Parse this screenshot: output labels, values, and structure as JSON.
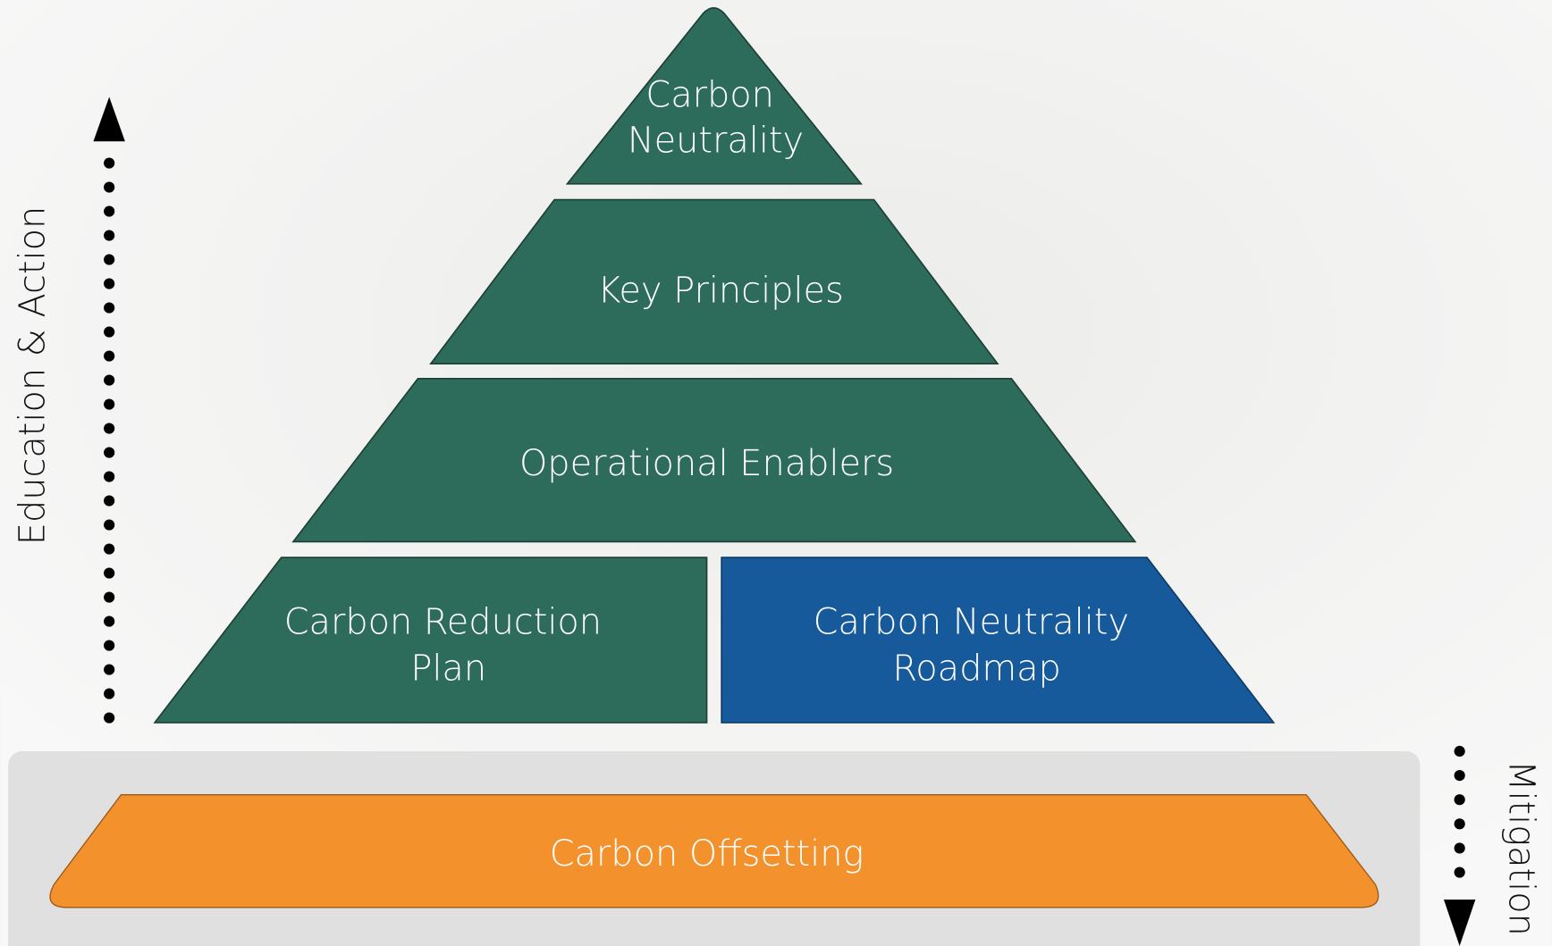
{
  "pyramid": {
    "levels": [
      {
        "lines": [
          "Carbon",
          "Neutrality"
        ]
      },
      {
        "lines": [
          "Key Principles"
        ]
      },
      {
        "lines": [
          "Operational Enablers"
        ]
      },
      {
        "lines": [
          "Carbon Reduction",
          "Plan"
        ]
      },
      {
        "lines": [
          "Carbon Neutrality",
          "Roadmap"
        ]
      }
    ],
    "base": "Carbon Offsetting",
    "left_axis": "Education & Action",
    "right_axis": "Mitigation"
  }
}
